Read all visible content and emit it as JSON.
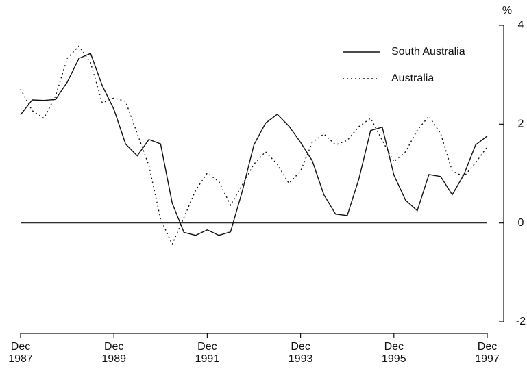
{
  "chart_data": {
    "type": "line",
    "y_label": "%",
    "categories": [
      "Dec 1987",
      null,
      null,
      null,
      null,
      null,
      null,
      null,
      "Dec 1989",
      null,
      null,
      null,
      null,
      null,
      null,
      null,
      "Dec 1991",
      null,
      null,
      null,
      null,
      null,
      null,
      null,
      "Dec 1993",
      null,
      null,
      null,
      null,
      null,
      null,
      null,
      "Dec 1995",
      null,
      null,
      null,
      null,
      null,
      null,
      null,
      "Dec 1997"
    ],
    "series": [
      {
        "name": "South Australia",
        "color": "#111111",
        "dash": "solid",
        "values": [
          2.19,
          2.49,
          2.48,
          2.5,
          2.85,
          3.33,
          3.43,
          2.78,
          2.3,
          1.6,
          1.36,
          1.69,
          1.6,
          0.4,
          -0.19,
          -0.25,
          -0.14,
          -0.25,
          -0.18,
          0.64,
          1.58,
          2.02,
          2.2,
          1.96,
          1.63,
          1.26,
          0.57,
          0.18,
          0.15,
          0.89,
          1.87,
          1.94,
          0.97,
          0.46,
          0.25,
          0.98,
          0.94,
          0.57,
          0.98,
          1.58,
          1.76
        ]
      },
      {
        "name": "Australia",
        "color": "#111111",
        "dash": "dotted",
        "values": [
          2.71,
          2.27,
          2.12,
          2.57,
          3.33,
          3.58,
          3.24,
          2.43,
          2.53,
          2.46,
          1.81,
          1.16,
          0.08,
          -0.43,
          0.11,
          0.66,
          1.01,
          0.84,
          0.36,
          0.77,
          1.19,
          1.44,
          1.19,
          0.8,
          1.05,
          1.63,
          1.8,
          1.58,
          1.67,
          1.95,
          2.12,
          1.67,
          1.24,
          1.44,
          1.88,
          2.16,
          1.81,
          1.05,
          0.94,
          1.22,
          1.54
        ]
      }
    ],
    "ylim": [
      -2,
      4
    ],
    "yticks": [
      -2,
      0,
      2,
      4
    ],
    "y_axis_side": "right",
    "legend": "top-right",
    "grid": false
  }
}
